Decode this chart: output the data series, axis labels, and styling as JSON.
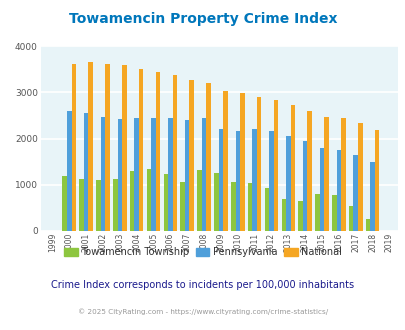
{
  "title": "Towamencin Property Crime Index",
  "years": [
    1999,
    2000,
    2001,
    2002,
    2003,
    2004,
    2005,
    2006,
    2007,
    2008,
    2009,
    2010,
    2011,
    2012,
    2013,
    2014,
    2015,
    2016,
    2017,
    2018,
    2019
  ],
  "towamencin": [
    0,
    1200,
    1130,
    1100,
    1120,
    1305,
    1345,
    1225,
    1060,
    1330,
    1255,
    1055,
    1030,
    940,
    685,
    660,
    805,
    775,
    545,
    265,
    0
  ],
  "pennsylvania": [
    0,
    2590,
    2560,
    2460,
    2430,
    2445,
    2445,
    2455,
    2395,
    2445,
    2205,
    2155,
    2215,
    2155,
    2055,
    1955,
    1805,
    1760,
    1650,
    1490,
    0
  ],
  "national": [
    0,
    3620,
    3660,
    3620,
    3590,
    3510,
    3435,
    3380,
    3275,
    3210,
    3040,
    2990,
    2900,
    2830,
    2730,
    2590,
    2470,
    2440,
    2330,
    2185,
    0
  ],
  "towamencin_color": "#8dc63f",
  "pennsylvania_color": "#4f9fda",
  "national_color": "#f5a623",
  "bg_color": "#e8f4f8",
  "title_color": "#0077bb",
  "grid_color": "#ffffff",
  "ylim": [
    0,
    4000
  ],
  "yticks": [
    0,
    1000,
    2000,
    3000,
    4000
  ],
  "footnote": "Crime Index corresponds to incidents per 100,000 inhabitants",
  "copyright": "© 2025 CityRating.com - https://www.cityrating.com/crime-statistics/",
  "legend_labels": [
    "Towamencin Township",
    "Pennsylvania",
    "National"
  ]
}
